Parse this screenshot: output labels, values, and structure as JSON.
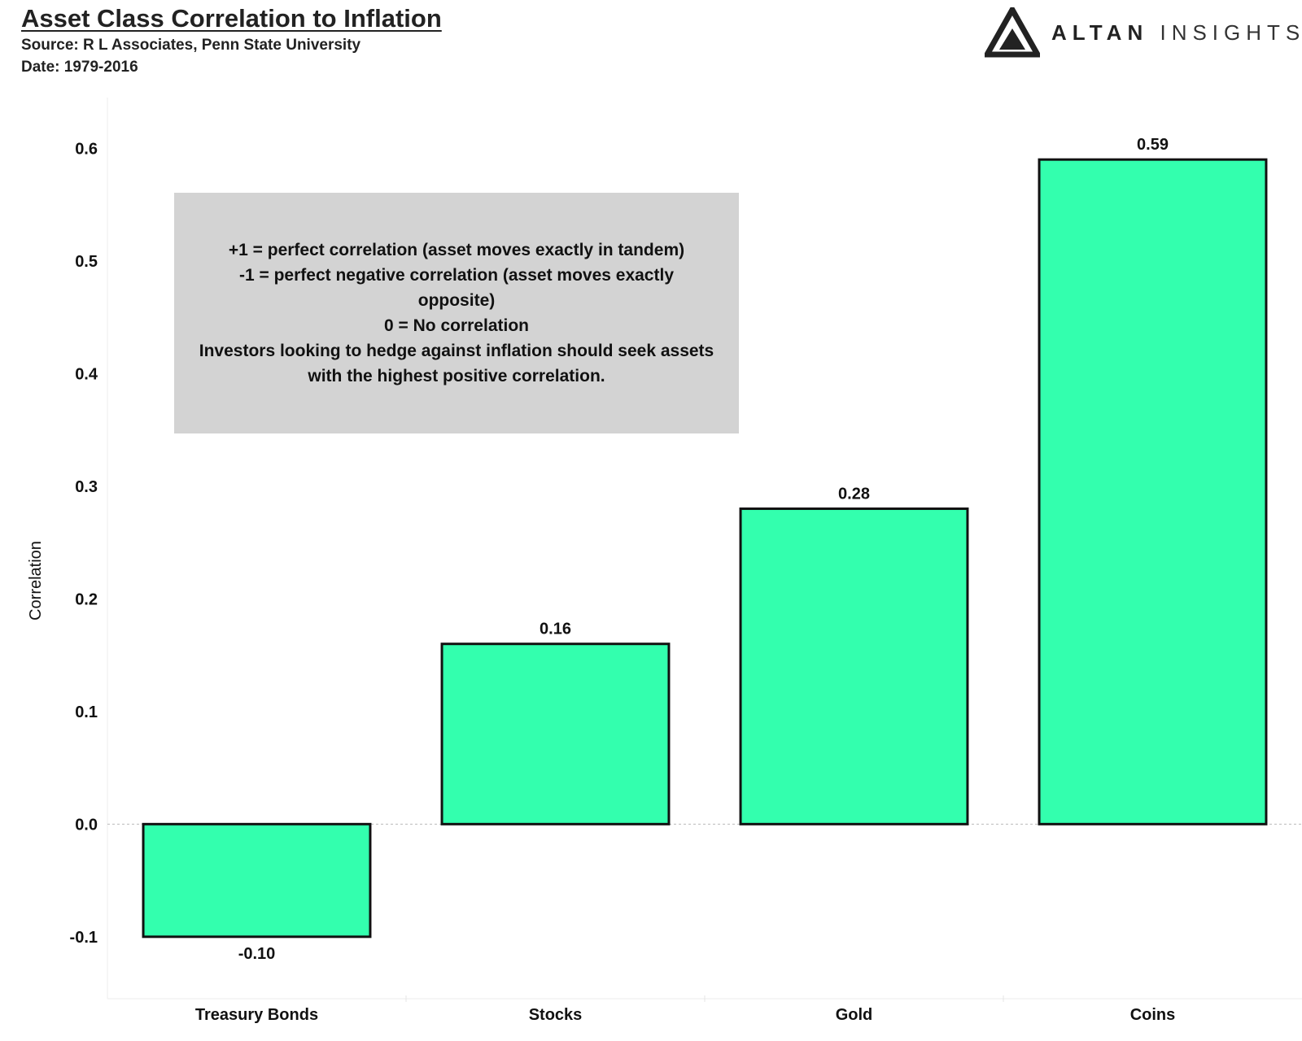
{
  "header": {
    "title": "Asset Class Correlation to Inflation",
    "source": "Source: R L Associates, Penn State University",
    "date": "Date: 1979-2016"
  },
  "logo": {
    "icon": "triangle-logo-icon",
    "word_bold": "ALTAN",
    "word_light": "INSIGHTS"
  },
  "note": {
    "lines": [
      "+1 = perfect correlation (asset moves exactly in tandem)",
      "-1 = perfect negative correlation (asset moves exactly opposite)",
      "0 = No correlation",
      "Investors looking to hedge against inflation should seek assets with the highest positive correlation."
    ]
  },
  "colors": {
    "bar_fill": "#33ffae",
    "bar_stroke": "#111111",
    "zero_line": "#bbbbbb",
    "note_bg": "#d3d3d3"
  },
  "chart_data": {
    "type": "bar",
    "title": "Asset Class Correlation to Inflation",
    "xlabel": "",
    "ylabel": "Correlation",
    "categories": [
      "Treasury Bonds",
      "Stocks",
      "Gold",
      "Coins"
    ],
    "values": [
      -0.1,
      0.16,
      0.28,
      0.59
    ],
    "data_labels": [
      "-0.10",
      "0.16",
      "0.28",
      "0.59"
    ],
    "yticks": [
      -0.1,
      0.0,
      0.1,
      0.2,
      0.3,
      0.4,
      0.5,
      0.6
    ],
    "ytick_labels": [
      "-0.1",
      "0.0",
      "0.1",
      "0.2",
      "0.3",
      "0.4",
      "0.5",
      "0.6"
    ],
    "ylim": [
      -0.155,
      0.645
    ],
    "grid": false,
    "legend": "none"
  }
}
